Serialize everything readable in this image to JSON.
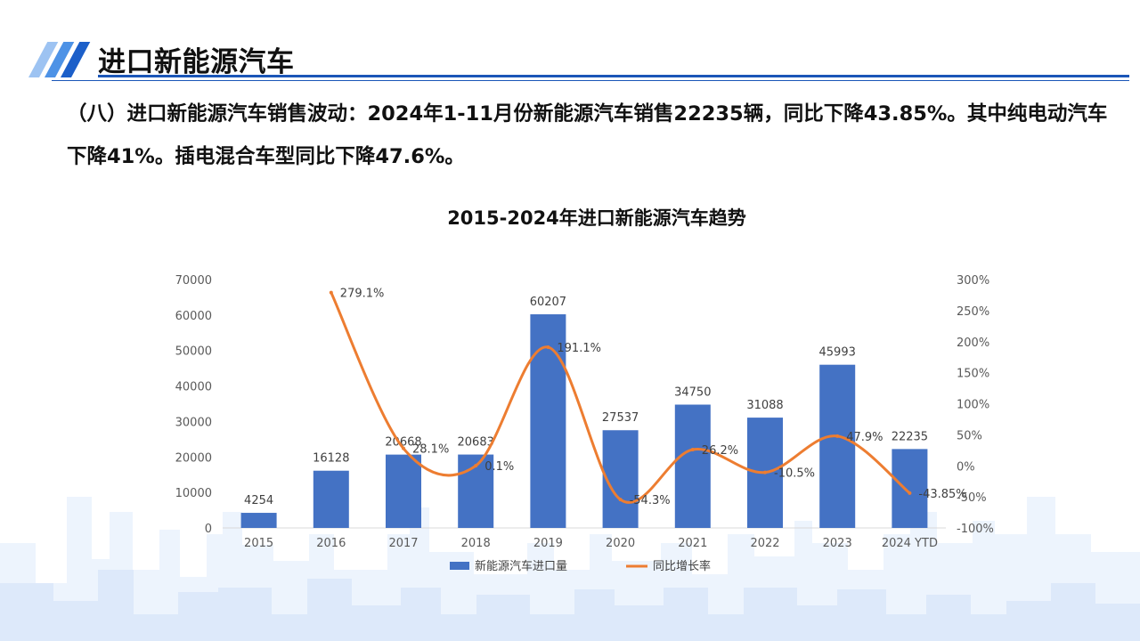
{
  "header": {
    "title": "进口新能源汽车",
    "accent_color": "#1b56b8",
    "stripe_colors": [
      "#9dc3f2",
      "#4d92e6",
      "#1c5fc9"
    ]
  },
  "summary": "（八）进口新能源汽车销售波动：2024年1-11月份新能源汽车销售22235辆，同比下降43.85%。其中纯电动汽车下降41%。插电混合车型同比下降47.6%。",
  "chart_data": {
    "type": "bar",
    "title": "2015-2024年进口新能源汽车趋势",
    "categories": [
      "2015",
      "2016",
      "2017",
      "2018",
      "2019",
      "2020",
      "2021",
      "2022",
      "2023",
      "2024 YTD"
    ],
    "series": [
      {
        "name": "新能源汽车进口量",
        "type": "bar",
        "axis": "left",
        "color": "#4472c4",
        "values": [
          4254,
          16128,
          20668,
          20683,
          60207,
          27537,
          34750,
          31088,
          45993,
          22235
        ],
        "labels": [
          "4254",
          "16128",
          "20668",
          "20683",
          "60207",
          "27537",
          "34750",
          "31088",
          "45993",
          "22235"
        ]
      },
      {
        "name": "同比增长率",
        "type": "line",
        "axis": "right",
        "color": "#ed7d31",
        "smooth": true,
        "values": [
          null,
          279.1,
          28.1,
          0.1,
          191.1,
          -54.3,
          26.2,
          -10.5,
          47.9,
          -43.85
        ],
        "labels": [
          null,
          "279.1%",
          "28.1%",
          "0.1%",
          "191.1%",
          "-54.3%",
          "26.2%",
          "-10.5%",
          "47.9%",
          "-43.85%"
        ]
      }
    ],
    "y_left": {
      "min": 0,
      "max": 70000,
      "step": 10000,
      "ticks": [
        "0",
        "10000",
        "20000",
        "30000",
        "40000",
        "50000",
        "60000",
        "70000"
      ]
    },
    "y_right": {
      "min": -100,
      "max": 300,
      "step": 50,
      "ticks": [
        "-100%",
        "-50%",
        "0%",
        "50%",
        "100%",
        "150%",
        "200%",
        "250%",
        "300%"
      ]
    },
    "grid": false,
    "legend": "bottom-center"
  }
}
